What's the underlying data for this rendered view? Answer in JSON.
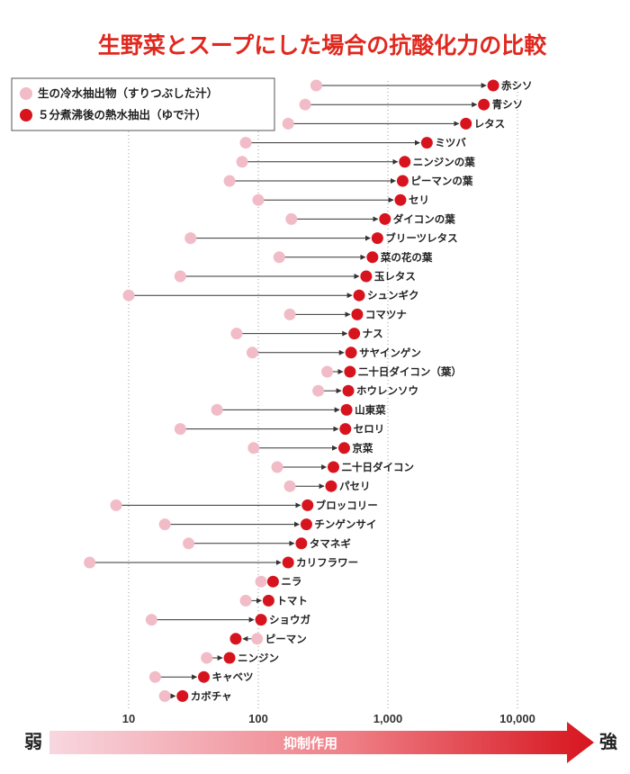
{
  "chart_data": {
    "type": "scatter",
    "title": "生野菜とスープにした場合の抗酸化力の比較",
    "x_scale": "log",
    "xlim": [
      3,
      40000
    ],
    "x_ticks": [
      "10",
      "100",
      "1,000",
      "10,000"
    ],
    "x_tick_values": [
      10,
      100,
      1000,
      10000
    ],
    "grid": "vertical dotted",
    "legend": {
      "placement": "top-left",
      "entries": [
        {
          "label": "生の冷水抽出物（すりつぶした汁）",
          "color": "#f1bcc7"
        },
        {
          "label": "５分煮沸後の熱水抽出（ゆで汁）",
          "color": "#d7141e"
        }
      ]
    },
    "axis_bar": {
      "weak": "弱",
      "strong": "強",
      "caption": "抑制作用"
    },
    "series": [
      {
        "name": "生の冷水抽出物（すりつぶした汁）",
        "key": "raw"
      },
      {
        "name": "５分煮沸後の熱水抽出（ゆで汁）",
        "key": "boiled"
      }
    ],
    "items": [
      {
        "name": "赤シソ",
        "raw": 280,
        "boiled": 6500
      },
      {
        "name": "青シソ",
        "raw": 230,
        "boiled": 5500
      },
      {
        "name": "レタス",
        "raw": 170,
        "boiled": 4000
      },
      {
        "name": "ミツバ",
        "raw": 80,
        "boiled": 2000
      },
      {
        "name": "ニンジンの葉",
        "raw": 75,
        "boiled": 1350
      },
      {
        "name": "ピーマンの葉",
        "raw": 60,
        "boiled": 1300
      },
      {
        "name": "セリ",
        "raw": 100,
        "boiled": 1250
      },
      {
        "name": "ダイコンの葉",
        "raw": 180,
        "boiled": 950
      },
      {
        "name": "ブリーツレタス",
        "raw": 30,
        "boiled": 830
      },
      {
        "name": "菜の花の葉",
        "raw": 145,
        "boiled": 760
      },
      {
        "name": "玉レタス",
        "raw": 25,
        "boiled": 680
      },
      {
        "name": "シュンギク",
        "raw": 10,
        "boiled": 600
      },
      {
        "name": "コマツナ",
        "raw": 175,
        "boiled": 580
      },
      {
        "name": "ナス",
        "raw": 68,
        "boiled": 550
      },
      {
        "name": "サヤインゲン",
        "raw": 90,
        "boiled": 520
      },
      {
        "name": "二十日ダイコン（葉）",
        "raw": 340,
        "boiled": 510
      },
      {
        "name": "ホウレンソウ",
        "raw": 290,
        "boiled": 495
      },
      {
        "name": "山東菜",
        "raw": 48,
        "boiled": 480
      },
      {
        "name": "セロリ",
        "raw": 25,
        "boiled": 470
      },
      {
        "name": "京菜",
        "raw": 92,
        "boiled": 460
      },
      {
        "name": "二十日ダイコン",
        "raw": 140,
        "boiled": 380
      },
      {
        "name": "パセリ",
        "raw": 175,
        "boiled": 365
      },
      {
        "name": "ブロッコリー",
        "raw": 8,
        "boiled": 240
      },
      {
        "name": "チンゲンサイ",
        "raw": 19,
        "boiled": 235
      },
      {
        "name": "タマネギ",
        "raw": 29,
        "boiled": 215
      },
      {
        "name": "カリフラワー",
        "raw": 5,
        "boiled": 170
      },
      {
        "name": "ニラ",
        "raw": 105,
        "boiled": 130
      },
      {
        "name": "トマト",
        "raw": 80,
        "boiled": 120
      },
      {
        "name": "ショウガ",
        "raw": 15,
        "boiled": 105
      },
      {
        "name": "ピーマン",
        "raw": 98,
        "boiled": 67
      },
      {
        "name": "ニンジン",
        "raw": 40,
        "boiled": 60
      },
      {
        "name": "キャベツ",
        "raw": 16,
        "boiled": 38
      },
      {
        "name": "カボチャ",
        "raw": 19,
        "boiled": 26
      }
    ]
  },
  "colors": {
    "title": "#e0281e",
    "raw_dot": "#f1bcc7",
    "boiled_dot": "#d7141e",
    "connector": "#333333",
    "grid": "#9a9a9a",
    "bar_start": "#f8d7e0",
    "bar_end": "#d7141e"
  }
}
